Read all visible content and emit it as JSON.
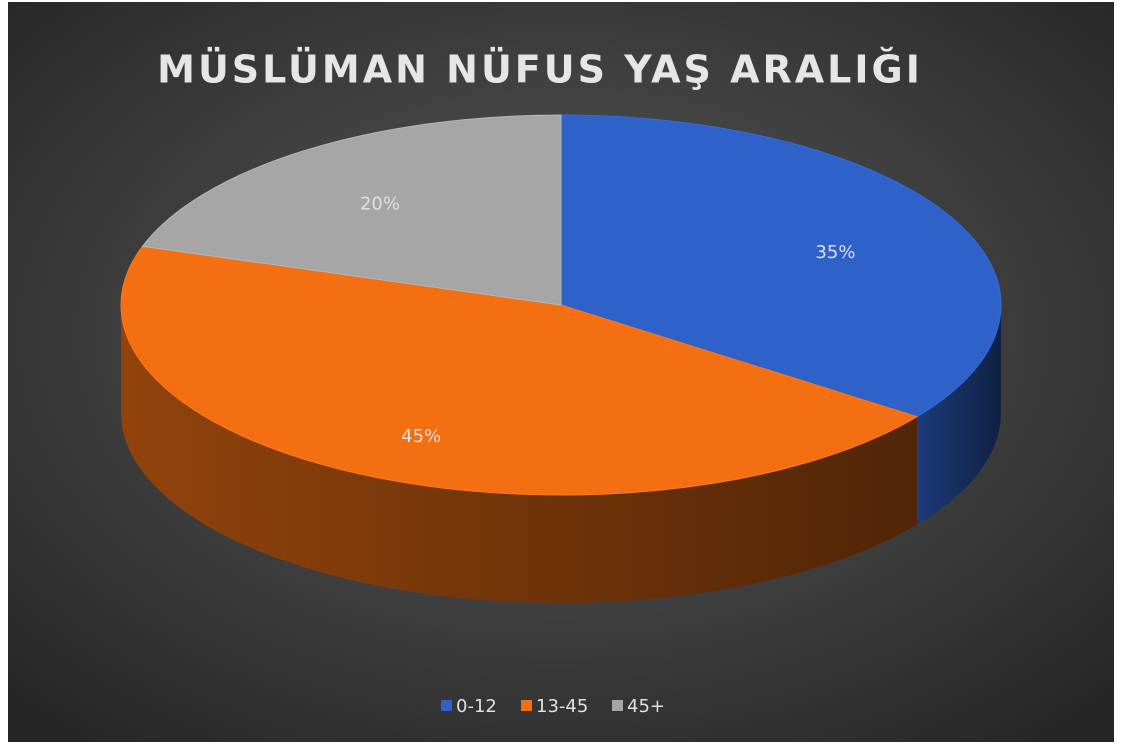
{
  "chart_data": {
    "type": "pie",
    "title": "MÜSLÜMAN NÜFUS YAŞ ARALIĞI",
    "categories": [
      "0-12",
      "13-45",
      "45+"
    ],
    "values": [
      35,
      45,
      20
    ],
    "value_labels": [
      "35%",
      "45%",
      "20%"
    ],
    "colors": [
      "#2e62c9",
      "#f36f12",
      "#a6a6a6"
    ],
    "legend": "bottom"
  }
}
